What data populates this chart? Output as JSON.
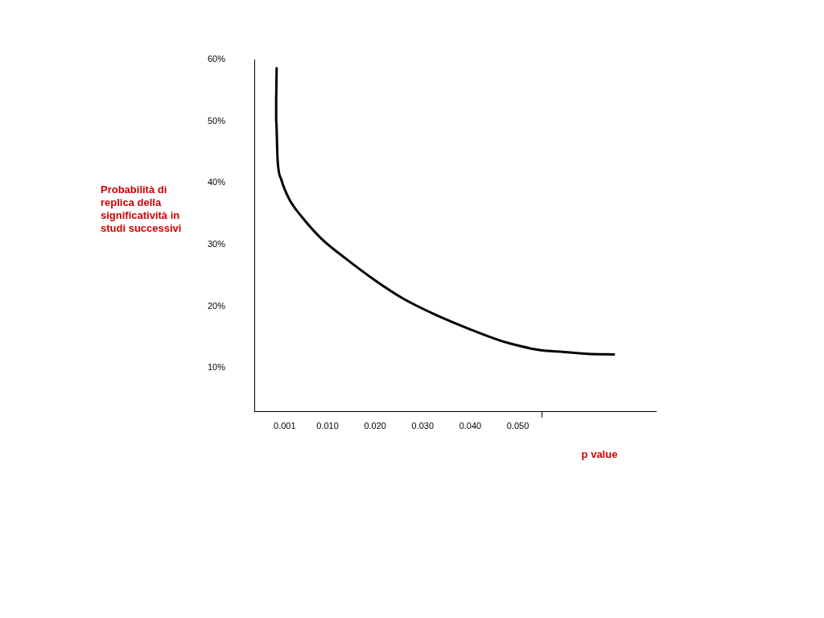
{
  "chart_data": {
    "type": "line",
    "xlabel": "p value",
    "ylabel": "Probabilità di replica della significatività in studi successivi",
    "x": [
      -0.0007,
      -0.0008,
      -0.0008,
      -0.0005,
      0.0003,
      0.002,
      0.0046,
      0.0088,
      0.0139,
      0.02,
      0.0258,
      0.0325,
      0.0402,
      0.0461,
      0.0503,
      0.0546,
      0.0597,
      0.0647,
      0.0702
    ],
    "series": [
      {
        "color": "#000000",
        "values": [
          58.6,
          54.0,
          50.1,
          43.7,
          40.5,
          37.3,
          34.5,
          30.9,
          27.7,
          24.2,
          21.3,
          18.7,
          16.2,
          14.5,
          13.6,
          12.9,
          12.6,
          12.3,
          12.2
        ]
      }
    ],
    "xlim": [
      -0.0054,
      0.079
    ],
    "xticks": [
      {
        "value": 0.001,
        "label": "0.001"
      },
      {
        "value": 0.01,
        "label": "0.010"
      },
      {
        "value": 0.02,
        "label": "0.020"
      },
      {
        "value": 0.03,
        "label": "0.030"
      },
      {
        "value": 0.04,
        "label": "0.040"
      },
      {
        "value": 0.05,
        "label": "0.050"
      },
      {
        "value": 0.055,
        "label": null
      }
    ],
    "ylim": [
      3,
      60
    ],
    "yticks": [
      {
        "value": 10,
        "label": "10%"
      },
      {
        "value": 20,
        "label": "20%"
      },
      {
        "value": 30,
        "label": "30%"
      },
      {
        "value": 40,
        "label": "40%"
      },
      {
        "value": 50,
        "label": "50%"
      },
      {
        "value": 60,
        "label": "60%"
      }
    ],
    "grid": false,
    "legend": false,
    "marker": "none",
    "line_style": "solid"
  }
}
